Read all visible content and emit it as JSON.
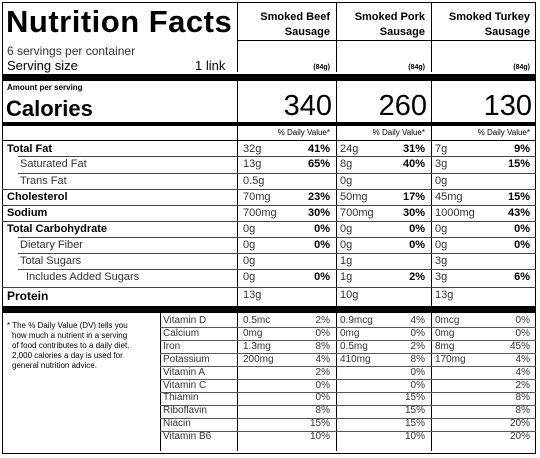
{
  "title": "Nutrition Facts",
  "servings_per_container": "6 servings per container",
  "serving_size_label": "Serving size",
  "serving_size_value": "1 link",
  "amount_per_serving": "Amount per serving",
  "calories_label": "Calories",
  "dv_header": "% Daily Value*",
  "products": [
    {
      "name_line1": "Smoked Beef",
      "name_line2": "Sausage",
      "weight": "(84g)",
      "calories": "340"
    },
    {
      "name_line1": "Smoked Pork",
      "name_line2": "Sausage",
      "weight": "(84g)",
      "calories": "260"
    },
    {
      "name_line1": "Smoked Turkey",
      "name_line2": "Sausage",
      "weight": "(84g)",
      "calories": "130"
    }
  ],
  "nutrients": [
    {
      "label": "Total Fat",
      "bold": true,
      "indent": 0,
      "values": [
        [
          "32g",
          "41%"
        ],
        [
          "24g",
          "31%"
        ],
        [
          "7g",
          "9%"
        ]
      ]
    },
    {
      "label": "Saturated Fat",
      "bold": false,
      "indent": 1,
      "values": [
        [
          "13g",
          "65%"
        ],
        [
          "8g",
          "40%"
        ],
        [
          "3g",
          "15%"
        ]
      ]
    },
    {
      "label": "Trans Fat",
      "bold": false,
      "indent": 1,
      "values": [
        [
          "0.5g",
          ""
        ],
        [
          "0g",
          ""
        ],
        [
          "0g",
          ""
        ]
      ]
    },
    {
      "label": "Cholesterol",
      "bold": true,
      "indent": 0,
      "values": [
        [
          "70mg",
          "23%"
        ],
        [
          "50mg",
          "17%"
        ],
        [
          "45mg",
          "15%"
        ]
      ]
    },
    {
      "label": "Sodium",
      "bold": true,
      "indent": 0,
      "values": [
        [
          "700mg",
          "30%"
        ],
        [
          "700mg",
          "30%"
        ],
        [
          "1000mg",
          "43%"
        ]
      ]
    },
    {
      "label": "Total Carbohydrate",
      "bold": true,
      "indent": 0,
      "values": [
        [
          "0g",
          "0%"
        ],
        [
          "0g",
          "0%"
        ],
        [
          "0g",
          "0%"
        ]
      ]
    },
    {
      "label": "Dietary Fiber",
      "bold": false,
      "indent": 1,
      "values": [
        [
          "0g",
          "0%"
        ],
        [
          "0g",
          "0%"
        ],
        [
          "0g",
          "0%"
        ]
      ]
    },
    {
      "label": "Total Sugars",
      "bold": false,
      "indent": 1,
      "values": [
        [
          "0g",
          ""
        ],
        [
          "1g",
          ""
        ],
        [
          "3g",
          ""
        ]
      ]
    },
    {
      "label": "Includes Added Sugars",
      "bold": false,
      "indent": 2,
      "values": [
        [
          "0g",
          "0%"
        ],
        [
          "1g",
          "2%"
        ],
        [
          "3g",
          "6%"
        ]
      ]
    },
    {
      "label": "Protein",
      "bold": true,
      "indent": 0,
      "values": [
        [
          "13g",
          ""
        ],
        [
          "10g",
          ""
        ],
        [
          "13g",
          ""
        ]
      ]
    }
  ],
  "footnote": [
    "* The % Daily Value (DV) tells you",
    "how much a nutrient in a serving",
    "of food contributes to a daily diet.",
    "2,000 calories a day is used for",
    "general nutrition advice."
  ],
  "vitamins": [
    {
      "label": "Vitamin D",
      "values": [
        [
          "0.5mc",
          "2%"
        ],
        [
          "0.9mcg",
          "4%"
        ],
        [
          "0mcg",
          "0%"
        ]
      ]
    },
    {
      "label": "Calcium",
      "values": [
        [
          "0mg",
          "0%"
        ],
        [
          "0mg",
          "0%"
        ],
        [
          "0mg",
          "0%"
        ]
      ]
    },
    {
      "label": "Iron",
      "values": [
        [
          "1.3mg",
          "8%"
        ],
        [
          "0.5mg",
          "2%"
        ],
        [
          "8mg",
          "45%"
        ]
      ]
    },
    {
      "label": "Potassium",
      "values": [
        [
          "200mg",
          "4%"
        ],
        [
          "410mg",
          "8%"
        ],
        [
          "170mg",
          "4%"
        ]
      ]
    },
    {
      "label": "Vitamin A",
      "values": [
        [
          "",
          "2%"
        ],
        [
          "",
          "0%"
        ],
        [
          "",
          "4%"
        ]
      ]
    },
    {
      "label": "Vitamin C",
      "values": [
        [
          "",
          "0%"
        ],
        [
          "",
          "0%"
        ],
        [
          "",
          "2%"
        ]
      ]
    },
    {
      "label": "Thiamin",
      "values": [
        [
          "",
          "0%"
        ],
        [
          "",
          "15%"
        ],
        [
          "",
          "8%"
        ]
      ]
    },
    {
      "label": "Riboflavin",
      "values": [
        [
          "",
          "8%"
        ],
        [
          "",
          "15%"
        ],
        [
          "",
          "8%"
        ]
      ]
    },
    {
      "label": "Niacin",
      "values": [
        [
          "",
          "15%"
        ],
        [
          "",
          "15%"
        ],
        [
          "",
          "20%"
        ]
      ]
    },
    {
      "label": "Vitamin B6",
      "values": [
        [
          "",
          "10%"
        ],
        [
          "",
          "10%"
        ],
        [
          "",
          "20%"
        ]
      ]
    }
  ]
}
